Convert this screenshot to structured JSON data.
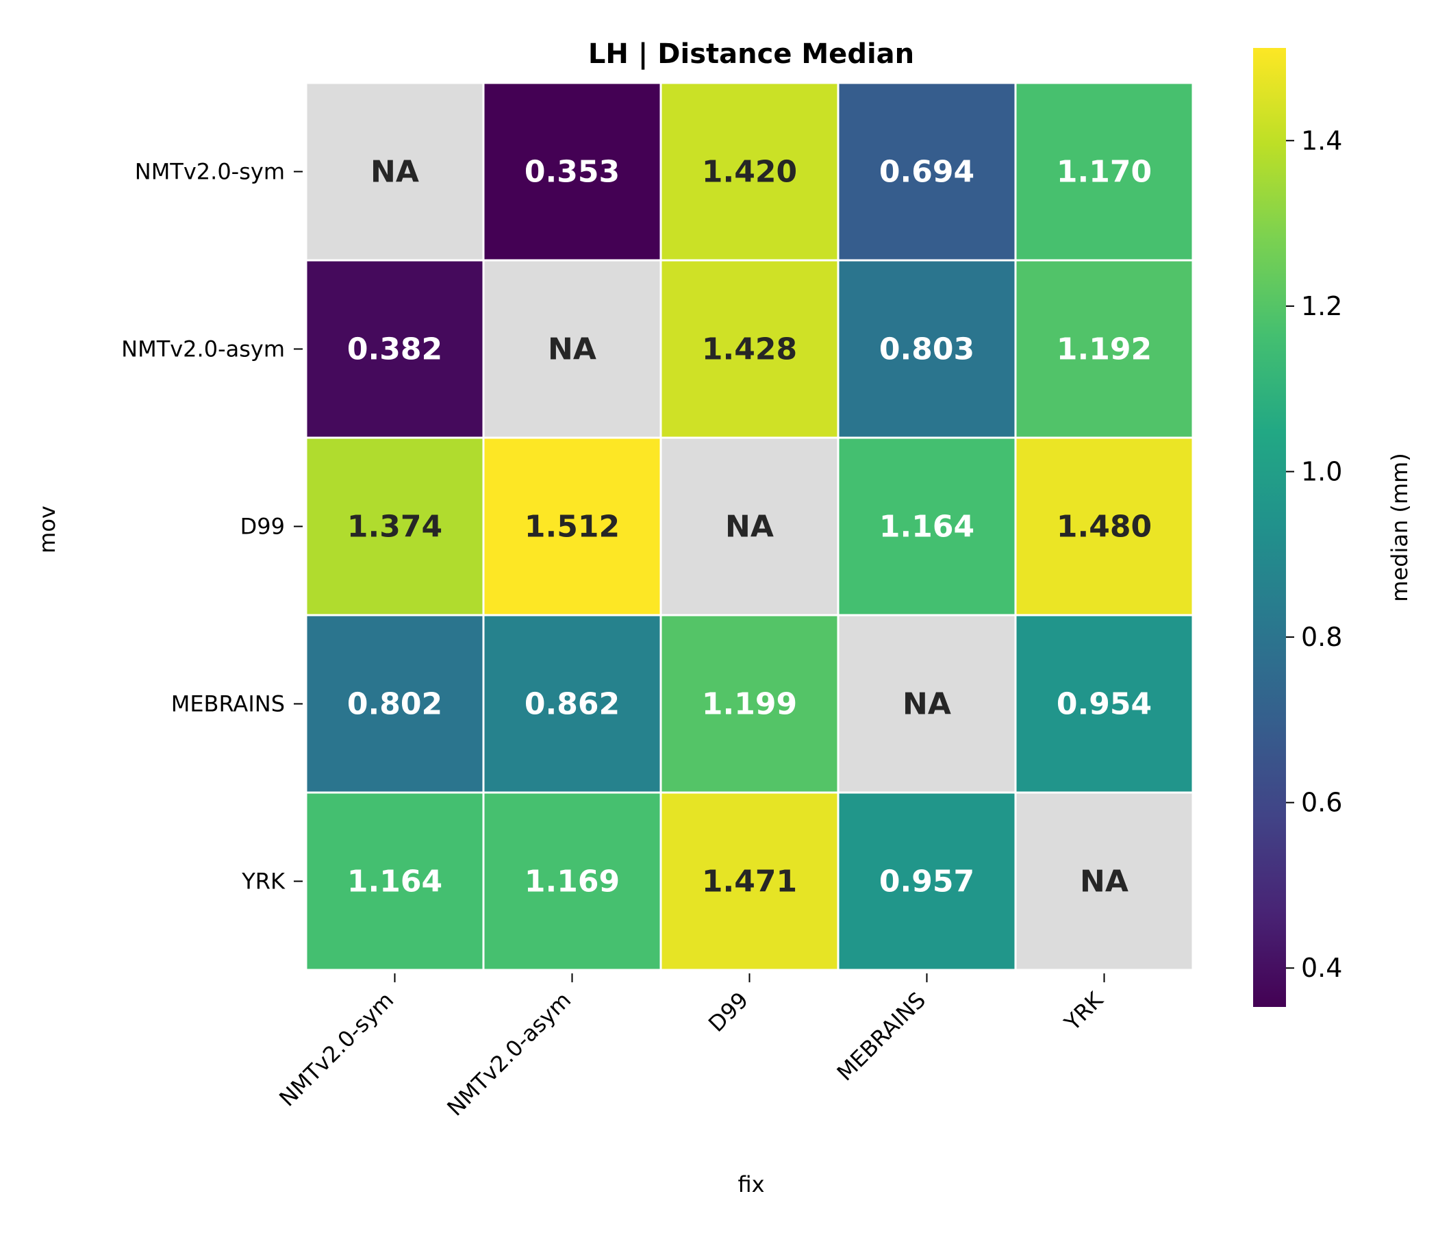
{
  "chart_data": {
    "type": "heatmap",
    "title": "LH | Distance Median",
    "xlabel": "fix",
    "ylabel": "mov",
    "x_categories": [
      "NMTv2.0-sym",
      "NMTv2.0-asym",
      "D99",
      "MEBRAINS",
      "YRK"
    ],
    "y_categories": [
      "NMTv2.0-sym",
      "NMTv2.0-asym",
      "D99",
      "MEBRAINS",
      "YRK"
    ],
    "values": [
      [
        null,
        0.353,
        1.42,
        0.694,
        1.17
      ],
      [
        0.382,
        null,
        1.428,
        0.803,
        1.192
      ],
      [
        1.374,
        1.512,
        null,
        1.164,
        1.48
      ],
      [
        0.802,
        0.862,
        1.199,
        null,
        0.954
      ],
      [
        1.164,
        1.169,
        1.471,
        0.957,
        null
      ]
    ],
    "cell_labels": [
      [
        "NA",
        "0.353",
        "1.420",
        "0.694",
        "1.170"
      ],
      [
        "0.382",
        "NA",
        "1.428",
        "0.803",
        "1.192"
      ],
      [
        "1.374",
        "1.512",
        "NA",
        "1.164",
        "1.480"
      ],
      [
        "0.802",
        "0.862",
        "1.199",
        "NA",
        "0.954"
      ],
      [
        "1.164",
        "1.169",
        "1.471",
        "0.957",
        "NA"
      ]
    ],
    "colormap": "viridis",
    "missing_color": "#dcdcdc",
    "colorbar": {
      "label": "median (mm)",
      "range": [
        0.353,
        1.512
      ],
      "ticks": [
        0.4,
        0.6,
        0.8,
        1.0,
        1.2,
        1.4
      ],
      "tick_labels": [
        "0.4",
        "0.6",
        "0.8",
        "1.0",
        "1.2",
        "1.4"
      ]
    }
  }
}
